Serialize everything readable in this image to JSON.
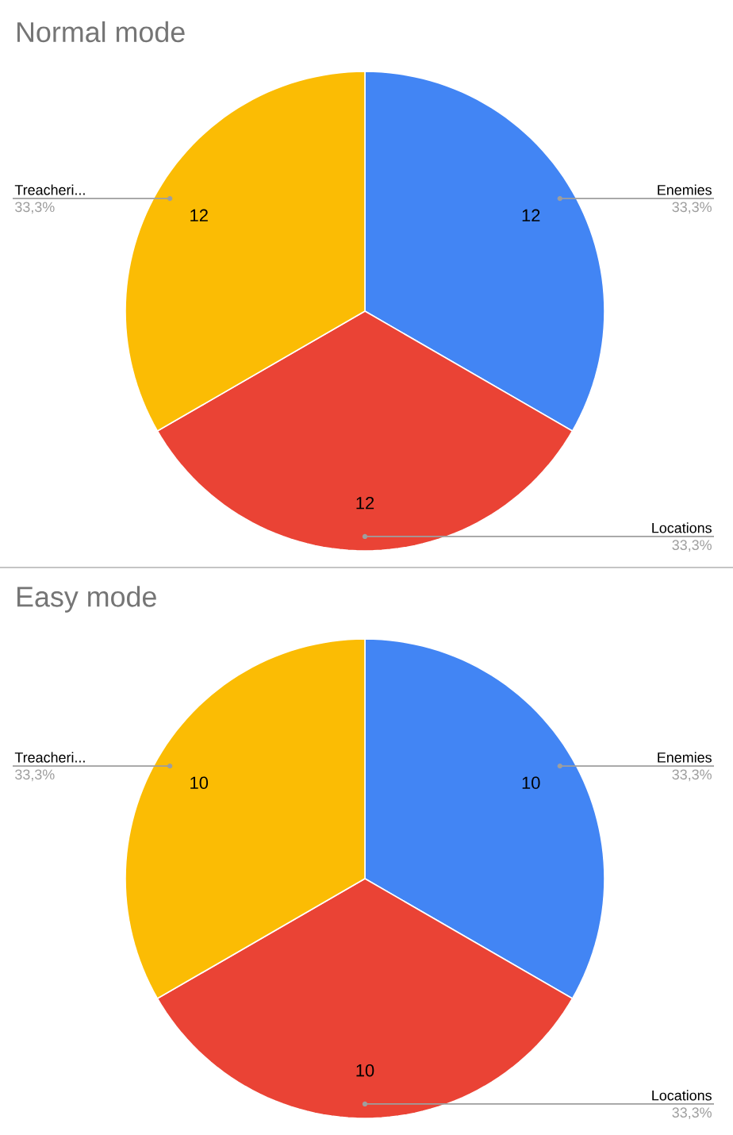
{
  "chart_data": [
    {
      "type": "pie",
      "title": "Normal mode",
      "categories": [
        "Enemies",
        "Locations",
        "Treacheri..."
      ],
      "values": [
        12,
        12,
        12
      ],
      "value_labels": [
        "12",
        "12",
        "12"
      ],
      "colors": [
        "#4285f4",
        "#ea4335",
        "#fbbc04"
      ],
      "annotations": [
        "33,3%",
        "33,3%",
        "33,3%"
      ]
    },
    {
      "type": "pie",
      "title": "Easy mode",
      "categories": [
        "Enemies",
        "Locations",
        "Treacheri..."
      ],
      "values": [
        10,
        10,
        10
      ],
      "value_labels": [
        "10",
        "10",
        "10"
      ],
      "colors": [
        "#4285f4",
        "#ea4335",
        "#fbbc04"
      ],
      "annotations": [
        "33,3%",
        "33,3%",
        "33,3%"
      ]
    }
  ]
}
